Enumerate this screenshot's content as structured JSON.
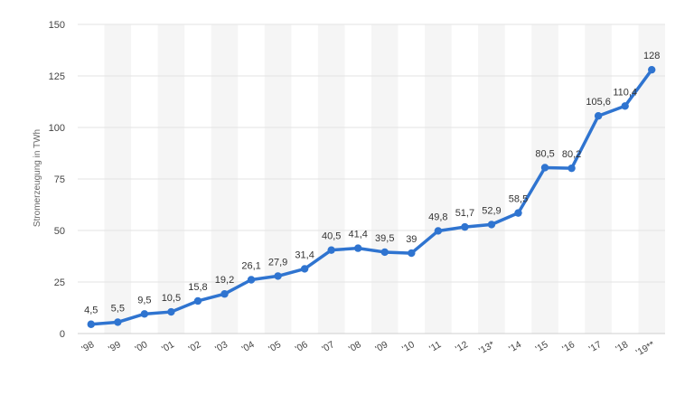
{
  "chart_data": {
    "type": "line",
    "title": "",
    "xlabel": "",
    "ylabel": "Stromerzeugung in TWh",
    "ylim": [
      0,
      150
    ],
    "yticks": [
      0,
      25,
      50,
      75,
      100,
      125,
      150
    ],
    "categories": [
      "'98",
      "'99",
      "'00",
      "'01",
      "'02",
      "'03",
      "'04",
      "'05",
      "'06",
      "'07",
      "'08",
      "'09",
      "'10",
      "'11",
      "'12",
      "'13*",
      "'14",
      "'15",
      "'16",
      "'17",
      "'18",
      "'19**"
    ],
    "series": [
      {
        "name": "Stromerzeugung",
        "color": "#2f74d0",
        "values": [
          4.5,
          5.5,
          9.5,
          10.5,
          15.8,
          19.2,
          26.1,
          27.9,
          31.4,
          40.5,
          41.4,
          39.5,
          39,
          49.8,
          51.7,
          52.9,
          58.5,
          80.5,
          80.2,
          105.6,
          110.4,
          128
        ],
        "labels": [
          "4,5",
          "5,5",
          "9,5",
          "10,5",
          "15,8",
          "19,2",
          "26,1",
          "27,9",
          "31,4",
          "40,5",
          "41,4",
          "39,5",
          "39",
          "49,8",
          "51,7",
          "52,9",
          "58,5",
          "80,5",
          "80,2",
          "105,6",
          "110,4",
          "128"
        ]
      }
    ],
    "grid": true,
    "band_color": "#f5f5f5"
  }
}
